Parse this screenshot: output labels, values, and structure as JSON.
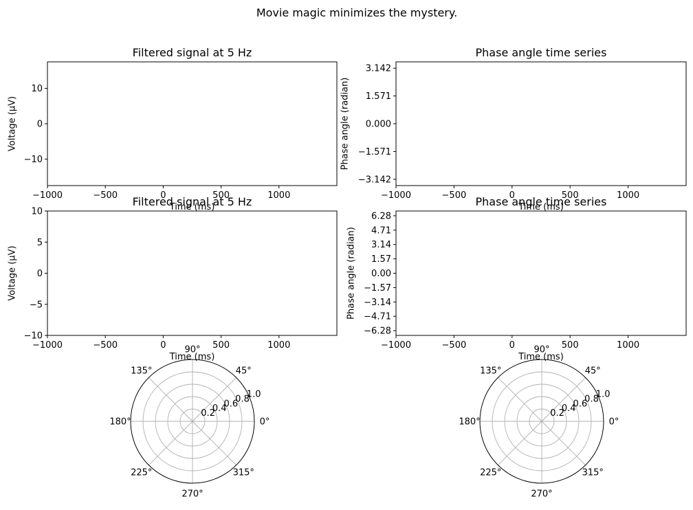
{
  "figure": {
    "suptitle": "Movie magic minimizes the mystery."
  },
  "chart_data": [
    {
      "type": "line",
      "title": "Filtered signal at 5 Hz",
      "xlabel": "Time (ms)",
      "ylabel": "Voltage (µV)",
      "xlim": [
        -1000,
        1500
      ],
      "ylim": [
        -17.5,
        17.5
      ],
      "xticks": [
        -1000,
        -500,
        0,
        500,
        1000
      ],
      "xticklabels": [
        "−1000",
        "−500",
        "0",
        "500",
        "1000"
      ],
      "yticks": [
        10,
        0,
        -10
      ],
      "yticklabels": [
        "10",
        "0",
        "−10"
      ],
      "series": []
    },
    {
      "type": "line",
      "title": "Phase angle time series",
      "xlabel": "Time (ms)",
      "ylabel": "Phase angle (radian)",
      "xlim": [
        -1000,
        1500
      ],
      "ylim": [
        -3.5,
        3.5
      ],
      "xticks": [
        -1000,
        -500,
        0,
        500,
        1000
      ],
      "xticklabels": [
        "−1000",
        "−500",
        "0",
        "500",
        "1000"
      ],
      "yticks": [
        3.142,
        1.571,
        0.0,
        -1.571,
        -3.142
      ],
      "yticklabels": [
        "3.142",
        "1.571",
        "0.000",
        "−1.571",
        "−3.142"
      ],
      "series": []
    },
    {
      "type": "line",
      "title": "Filtered signal at 5 Hz",
      "xlabel": "Time (ms)",
      "ylabel": "Voltage (µV)",
      "xlim": [
        -1000,
        1500
      ],
      "ylim": [
        -10,
        10
      ],
      "xticks": [
        -1000,
        -500,
        0,
        500,
        1000
      ],
      "xticklabels": [
        "−1000",
        "−500",
        "0",
        "500",
        "1000"
      ],
      "yticks": [
        10,
        5,
        0,
        -5,
        -10
      ],
      "yticklabels": [
        "10",
        "5",
        "0",
        "−5",
        "−10"
      ],
      "series": []
    },
    {
      "type": "line",
      "title": "Phase angle time series",
      "xlabel": "Time (ms)",
      "ylabel": "Phase angle (radian)",
      "xlim": [
        -1000,
        1500
      ],
      "ylim": [
        -6.8,
        6.8
      ],
      "xticks": [
        -1000,
        -500,
        0,
        500,
        1000
      ],
      "xticklabels": [
        "−1000",
        "−500",
        "0",
        "500",
        "1000"
      ],
      "yticks": [
        6.28,
        4.71,
        3.14,
        1.57,
        0.0,
        -1.57,
        -3.14,
        -4.71,
        -6.28
      ],
      "yticklabels": [
        "6.28",
        "4.71",
        "3.14",
        "1.57",
        "0.00",
        "−1.57",
        "−3.14",
        "−4.71",
        "−6.28"
      ],
      "series": []
    },
    {
      "type": "polar",
      "rlim": [
        0,
        1.0
      ],
      "rticks": [
        0.2,
        0.4,
        0.6,
        0.8,
        1.0
      ],
      "rticklabels": [
        "0.2",
        "0.4",
        "0.6",
        "0.8",
        "1.0"
      ],
      "thetaticks": [
        0,
        45,
        90,
        135,
        180,
        225,
        270,
        315
      ],
      "thetaticklabels": [
        "0°",
        "45°",
        "90°",
        "135°",
        "180°",
        "225°",
        "270°",
        "315°"
      ],
      "grid": true,
      "series": []
    },
    {
      "type": "polar",
      "rlim": [
        0,
        1.0
      ],
      "rticks": [
        0.2,
        0.4,
        0.6,
        0.8,
        1.0
      ],
      "rticklabels": [
        "0.2",
        "0.4",
        "0.6",
        "0.8",
        "1.0"
      ],
      "thetaticks": [
        0,
        45,
        90,
        135,
        180,
        225,
        270,
        315
      ],
      "thetaticklabels": [
        "0°",
        "45°",
        "90°",
        "135°",
        "180°",
        "225°",
        "270°",
        "315°"
      ],
      "grid": true,
      "series": []
    }
  ]
}
